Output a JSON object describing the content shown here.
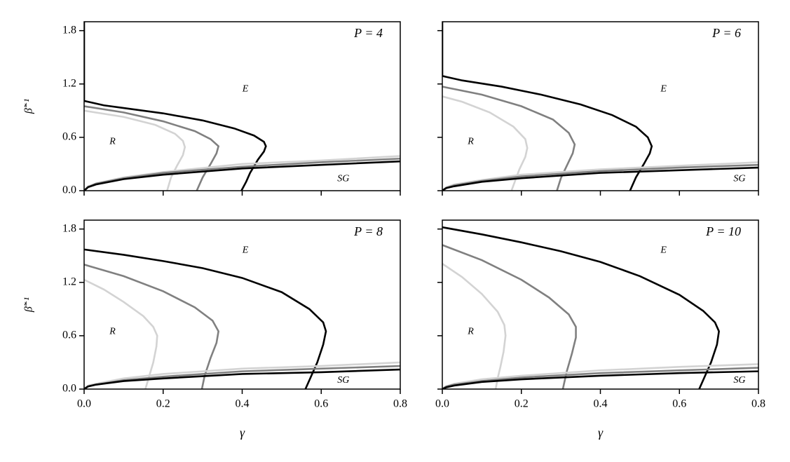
{
  "chart_data": [
    {
      "type": "line",
      "panel_label": "P = 4",
      "annotations": [
        "E",
        "R",
        "SG"
      ],
      "ylabel": "β̃⁻¹",
      "xlim": [
        0,
        0.8
      ],
      "ylim": [
        0,
        1.9
      ],
      "xticks": [
        0,
        0.2,
        0.4,
        0.6,
        0.8
      ],
      "xticklabels": false,
      "yticks": [
        {
          "value": 0,
          "label": "0.0"
        },
        0.6,
        1.2,
        1.8
      ],
      "yticklabels": true,
      "series": [
        {
          "color": "#d3d3d3",
          "x": [
            0,
            0.1,
            0.18,
            0.23,
            0.25,
            0.255,
            0.25,
            0.235,
            0.22,
            0.21
          ],
          "values": [
            0.9,
            0.83,
            0.74,
            0.64,
            0.56,
            0.49,
            0.4,
            0.28,
            0.15,
            0
          ]
        },
        {
          "color": "#808080",
          "x": [
            0,
            0.1,
            0.2,
            0.28,
            0.32,
            0.34,
            0.335,
            0.32,
            0.3,
            0.285
          ],
          "values": [
            0.95,
            0.88,
            0.78,
            0.67,
            0.58,
            0.5,
            0.42,
            0.3,
            0.15,
            0
          ]
        },
        {
          "color": "#000000",
          "x": [
            0,
            0,
            0.05,
            0.1,
            0.2,
            0.3,
            0.38,
            0.43,
            0.455,
            0.46,
            0.455,
            0.44,
            0.42,
            0.41,
            0.398
          ],
          "values": [
            1.9,
            1.01,
            0.96,
            0.93,
            0.87,
            0.79,
            0.7,
            0.62,
            0.55,
            0.5,
            0.44,
            0.35,
            0.2,
            0.1,
            0
          ]
        },
        {
          "color": "#d3d3d3",
          "x": [
            0,
            0.01,
            0.03,
            0.1,
            0.2,
            0.4,
            0.6,
            0.8
          ],
          "values": [
            0,
            0.05,
            0.08,
            0.15,
            0.21,
            0.3,
            0.34,
            0.39
          ]
        },
        {
          "color": "#808080",
          "x": [
            0,
            0.01,
            0.03,
            0.1,
            0.2,
            0.4,
            0.6,
            0.8
          ],
          "values": [
            0,
            0.04,
            0.08,
            0.14,
            0.2,
            0.27,
            0.32,
            0.36
          ]
        },
        {
          "color": "#000000",
          "x": [
            0,
            0.01,
            0.03,
            0.1,
            0.2,
            0.4,
            0.6,
            0.8
          ],
          "values": [
            0,
            0.04,
            0.07,
            0.13,
            0.18,
            0.25,
            0.29,
            0.33
          ]
        }
      ]
    },
    {
      "type": "line",
      "panel_label": "P = 6",
      "annotations": [
        "E",
        "R",
        "SG"
      ],
      "xlim": [
        0,
        0.8
      ],
      "ylim": [
        0,
        1.9
      ],
      "xticks": [
        0,
        0.2,
        0.4,
        0.6,
        0.8
      ],
      "xticklabels": false,
      "yticks": [
        0,
        0.6,
        1.2,
        1.8
      ],
      "yticklabels": false,
      "series": [
        {
          "color": "#d3d3d3",
          "x": [
            0,
            0.05,
            0.12,
            0.18,
            0.21,
            0.215,
            0.21,
            0.195,
            0.185,
            0.175
          ],
          "values": [
            1.06,
            1.0,
            0.88,
            0.72,
            0.58,
            0.48,
            0.38,
            0.24,
            0.12,
            0
          ]
        },
        {
          "color": "#808080",
          "x": [
            0,
            0.1,
            0.2,
            0.28,
            0.32,
            0.335,
            0.33,
            0.315,
            0.3,
            0.29
          ],
          "values": [
            1.17,
            1.08,
            0.95,
            0.8,
            0.65,
            0.52,
            0.42,
            0.28,
            0.14,
            0
          ]
        },
        {
          "color": "#000000",
          "x": [
            0,
            0,
            0.05,
            0.15,
            0.25,
            0.35,
            0.43,
            0.49,
            0.52,
            0.53,
            0.525,
            0.51,
            0.49,
            0.475
          ],
          "values": [
            1.9,
            1.29,
            1.24,
            1.17,
            1.08,
            0.97,
            0.85,
            0.72,
            0.6,
            0.5,
            0.42,
            0.3,
            0.15,
            0
          ]
        },
        {
          "color": "#d3d3d3",
          "x": [
            0,
            0.01,
            0.03,
            0.1,
            0.2,
            0.4,
            0.6,
            0.8
          ],
          "values": [
            0,
            0.04,
            0.07,
            0.12,
            0.18,
            0.24,
            0.28,
            0.32
          ]
        },
        {
          "color": "#808080",
          "x": [
            0,
            0.01,
            0.03,
            0.1,
            0.2,
            0.4,
            0.6,
            0.8
          ],
          "values": [
            0,
            0.03,
            0.06,
            0.11,
            0.16,
            0.22,
            0.26,
            0.29
          ]
        },
        {
          "color": "#000000",
          "x": [
            0,
            0.01,
            0.03,
            0.1,
            0.2,
            0.4,
            0.6,
            0.8
          ],
          "values": [
            0,
            0.03,
            0.05,
            0.1,
            0.14,
            0.2,
            0.23,
            0.26
          ]
        }
      ]
    },
    {
      "type": "line",
      "panel_label": "P = 8",
      "annotations": [
        "E",
        "R",
        "SG"
      ],
      "ylabel": "β̃⁻¹",
      "xlabel": "γ",
      "xlim": [
        0,
        0.8
      ],
      "ylim": [
        0,
        1.9
      ],
      "xticks": [
        {
          "value": 0,
          "label": "0.0"
        },
        0.2,
        0.4,
        0.6,
        0.8
      ],
      "xticklabels": true,
      "yticks": [
        {
          "value": 0,
          "label": "0.0"
        },
        0.6,
        1.2,
        1.8
      ],
      "yticklabels": true,
      "series": [
        {
          "color": "#d3d3d3",
          "x": [
            0,
            0.05,
            0.1,
            0.15,
            0.175,
            0.185,
            0.183,
            0.175,
            0.165,
            0.155
          ],
          "values": [
            1.23,
            1.12,
            0.98,
            0.82,
            0.7,
            0.6,
            0.48,
            0.3,
            0.15,
            0
          ]
        },
        {
          "color": "#808080",
          "x": [
            0,
            0.1,
            0.2,
            0.28,
            0.325,
            0.34,
            0.335,
            0.32,
            0.305,
            0.298
          ],
          "values": [
            1.4,
            1.27,
            1.1,
            0.92,
            0.77,
            0.65,
            0.52,
            0.35,
            0.15,
            0
          ]
        },
        {
          "color": "#000000",
          "x": [
            0,
            0.1,
            0.2,
            0.3,
            0.4,
            0.5,
            0.57,
            0.605,
            0.612,
            0.605,
            0.59,
            0.575,
            0.56
          ],
          "values": [
            1.57,
            1.51,
            1.44,
            1.36,
            1.25,
            1.09,
            0.9,
            0.75,
            0.65,
            0.5,
            0.3,
            0.15,
            0
          ]
        },
        {
          "color": "#d3d3d3",
          "x": [
            0,
            0.01,
            0.03,
            0.1,
            0.2,
            0.4,
            0.6,
            0.8
          ],
          "values": [
            0,
            0.04,
            0.06,
            0.12,
            0.17,
            0.23,
            0.26,
            0.3
          ]
        },
        {
          "color": "#808080",
          "x": [
            0,
            0.01,
            0.03,
            0.1,
            0.2,
            0.4,
            0.6,
            0.8
          ],
          "values": [
            0,
            0.03,
            0.05,
            0.1,
            0.14,
            0.2,
            0.23,
            0.26
          ]
        },
        {
          "color": "#000000",
          "x": [
            0,
            0.01,
            0.03,
            0.1,
            0.2,
            0.4,
            0.6,
            0.8
          ],
          "values": [
            0,
            0.03,
            0.05,
            0.09,
            0.12,
            0.17,
            0.19,
            0.22
          ]
        }
      ]
    },
    {
      "type": "line",
      "panel_label": "P = 10",
      "annotations": [
        "E",
        "R",
        "SG"
      ],
      "xlabel": "γ",
      "xlim": [
        0,
        0.8
      ],
      "ylim": [
        0,
        1.9
      ],
      "xticks": [
        {
          "value": 0,
          "label": "0.0"
        },
        0.2,
        0.4,
        0.6,
        0.8
      ],
      "xticklabels": true,
      "yticks": [
        0,
        0.6,
        1.2,
        1.8
      ],
      "yticklabels": false,
      "series": [
        {
          "color": "#d3d3d3",
          "x": [
            0,
            0.05,
            0.1,
            0.14,
            0.157,
            0.16,
            0.155,
            0.147,
            0.14,
            0.135
          ],
          "values": [
            1.41,
            1.26,
            1.07,
            0.87,
            0.72,
            0.6,
            0.42,
            0.25,
            0.12,
            0
          ]
        },
        {
          "color": "#808080",
          "x": [
            0,
            0.1,
            0.2,
            0.27,
            0.32,
            0.338,
            0.338,
            0.328,
            0.315,
            0.305
          ],
          "values": [
            1.62,
            1.45,
            1.23,
            1.03,
            0.84,
            0.7,
            0.58,
            0.4,
            0.2,
            0
          ]
        },
        {
          "color": "#000000",
          "x": [
            0,
            0.1,
            0.2,
            0.3,
            0.4,
            0.5,
            0.6,
            0.66,
            0.69,
            0.7,
            0.695,
            0.68,
            0.665,
            0.65
          ],
          "values": [
            1.82,
            1.74,
            1.65,
            1.55,
            1.43,
            1.27,
            1.06,
            0.88,
            0.75,
            0.65,
            0.5,
            0.3,
            0.15,
            0
          ]
        },
        {
          "color": "#d3d3d3",
          "x": [
            0,
            0.01,
            0.03,
            0.1,
            0.2,
            0.4,
            0.6,
            0.8
          ],
          "values": [
            0,
            0.03,
            0.06,
            0.11,
            0.15,
            0.21,
            0.25,
            0.28
          ]
        },
        {
          "color": "#808080",
          "x": [
            0,
            0.01,
            0.03,
            0.1,
            0.2,
            0.4,
            0.6,
            0.8
          ],
          "values": [
            0,
            0.03,
            0.05,
            0.09,
            0.13,
            0.18,
            0.21,
            0.24
          ]
        },
        {
          "color": "#000000",
          "x": [
            0,
            0.01,
            0.03,
            0.1,
            0.2,
            0.4,
            0.6,
            0.8
          ],
          "values": [
            0,
            0.02,
            0.04,
            0.08,
            0.11,
            0.15,
            0.18,
            0.2
          ]
        }
      ]
    }
  ]
}
